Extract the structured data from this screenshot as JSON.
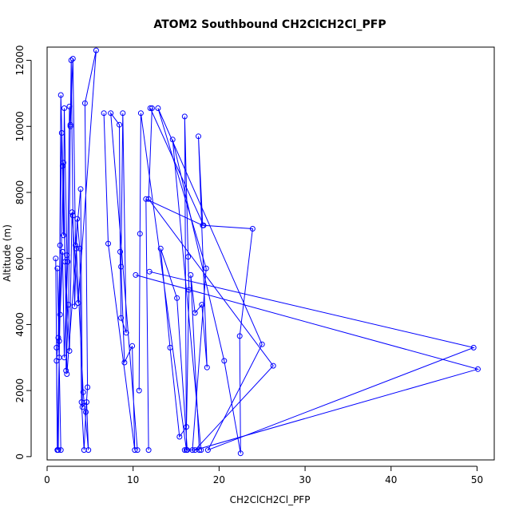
{
  "chart_data": {
    "type": "line",
    "title": "ATOM2 Southbound CH2ClCH2Cl_PFP",
    "xlabel": "CH2ClCH2Cl_PFP",
    "ylabel": "Altitude (m)",
    "xlim": [
      0,
      52
    ],
    "ylim": [
      -100,
      12400
    ],
    "x_ticks": [
      0,
      10,
      20,
      30,
      40,
      50
    ],
    "y_ticks": [
      0,
      2000,
      4000,
      6000,
      8000,
      10000,
      12000
    ],
    "grid": false,
    "series_color": "#0000ff",
    "marker": "open-circle",
    "series": [
      {
        "points": [
          [
            1.2,
            200
          ],
          [
            1.1,
            2900
          ],
          [
            1.3,
            3600
          ],
          [
            1.5,
            6400
          ],
          [
            1.7,
            9800
          ],
          [
            1.8,
            8800
          ],
          [
            1.9,
            6700
          ],
          [
            2.0,
            10550
          ],
          [
            2.3,
            6100
          ],
          [
            2.2,
            2600
          ],
          [
            2.5,
            4600
          ],
          [
            2.7,
            10000
          ],
          [
            2.8,
            12000
          ],
          [
            3.0,
            7300
          ],
          [
            3.2,
            4550
          ],
          [
            3.5,
            7200
          ],
          [
            3.8,
            6300
          ],
          [
            4.0,
            1650
          ],
          [
            4.3,
            200
          ],
          [
            4.5,
            1350
          ],
          [
            4.7,
            2100
          ],
          [
            4.4,
            10700
          ],
          [
            5.7,
            12300
          ],
          [
            3.6,
            4650
          ],
          [
            2.9,
            7400
          ],
          [
            2.6,
            3200
          ],
          [
            2.1,
            5900
          ],
          [
            1.6,
            10950
          ],
          [
            1.4,
            3000
          ],
          [
            1.3,
            200
          ]
        ]
      },
      {
        "points": [
          [
            1.0,
            6000
          ],
          [
            1.1,
            3300
          ],
          [
            1.2,
            200
          ],
          [
            1.5,
            4300
          ],
          [
            1.8,
            6200
          ],
          [
            2.0,
            3000
          ],
          [
            2.4,
            5900
          ],
          [
            2.6,
            10600
          ],
          [
            2.7,
            10050
          ],
          [
            3.0,
            12050
          ],
          [
            3.3,
            6400
          ],
          [
            3.9,
            8100
          ],
          [
            4.1,
            1500
          ],
          [
            4.6,
            1650
          ],
          [
            4.8,
            200
          ],
          [
            4.2,
            1950
          ],
          [
            3.4,
            6300
          ],
          [
            2.3,
            2500
          ],
          [
            1.9,
            8900
          ],
          [
            1.4,
            3500
          ],
          [
            1.2,
            5700
          ],
          [
            1.6,
            200
          ]
        ]
      },
      {
        "points": [
          [
            6.6,
            10400
          ],
          [
            7.1,
            6450
          ],
          [
            10.2,
            200
          ],
          [
            9.9,
            3350
          ],
          [
            9.0,
            2850
          ],
          [
            8.6,
            5750
          ],
          [
            8.8,
            10400
          ],
          [
            9.2,
            3750
          ],
          [
            8.6,
            4200
          ],
          [
            8.5,
            6200
          ],
          [
            8.4,
            10050
          ],
          [
            7.4,
            10400
          ],
          [
            10.5,
            200
          ]
        ]
      },
      {
        "points": [
          [
            10.7,
            2000
          ],
          [
            10.8,
            6750
          ],
          [
            10.9,
            10400
          ],
          [
            16.2,
            200
          ],
          [
            16.0,
            10300
          ],
          [
            16.4,
            6050
          ],
          [
            16.5,
            5050
          ],
          [
            16.2,
            900
          ],
          [
            15.4,
            600
          ],
          [
            14.3,
            3300
          ],
          [
            13.2,
            6300
          ],
          [
            15.1,
            4800
          ],
          [
            16.3,
            200
          ]
        ]
      },
      {
        "points": [
          [
            11.8,
            200
          ],
          [
            11.5,
            7800
          ],
          [
            18.1,
            7000
          ],
          [
            17.6,
            9700
          ],
          [
            18.6,
            2700
          ],
          [
            18.0,
            4600
          ],
          [
            17.2,
            4350
          ],
          [
            16.7,
            5500
          ],
          [
            17.7,
            200
          ],
          [
            16.0,
            200
          ]
        ]
      },
      {
        "points": [
          [
            12.0,
            10550
          ],
          [
            18.2,
            7000
          ],
          [
            23.9,
            6900
          ],
          [
            22.4,
            3650
          ],
          [
            22.5,
            100
          ],
          [
            20.6,
            2900
          ],
          [
            14.6,
            9600
          ],
          [
            17.9,
            200
          ]
        ]
      },
      {
        "points": [
          [
            11.9,
            5600
          ],
          [
            49.6,
            3300
          ],
          [
            18.7,
            200
          ],
          [
            25.0,
            3400
          ],
          [
            12.9,
            10550
          ],
          [
            18.5,
            5700
          ],
          [
            16.9,
            200
          ]
        ]
      },
      {
        "points": [
          [
            10.3,
            5500
          ],
          [
            50.1,
            2650
          ],
          [
            17.2,
            200
          ],
          [
            26.3,
            2750
          ],
          [
            11.8,
            7800
          ],
          [
            12.2,
            10550
          ]
        ]
      }
    ]
  }
}
